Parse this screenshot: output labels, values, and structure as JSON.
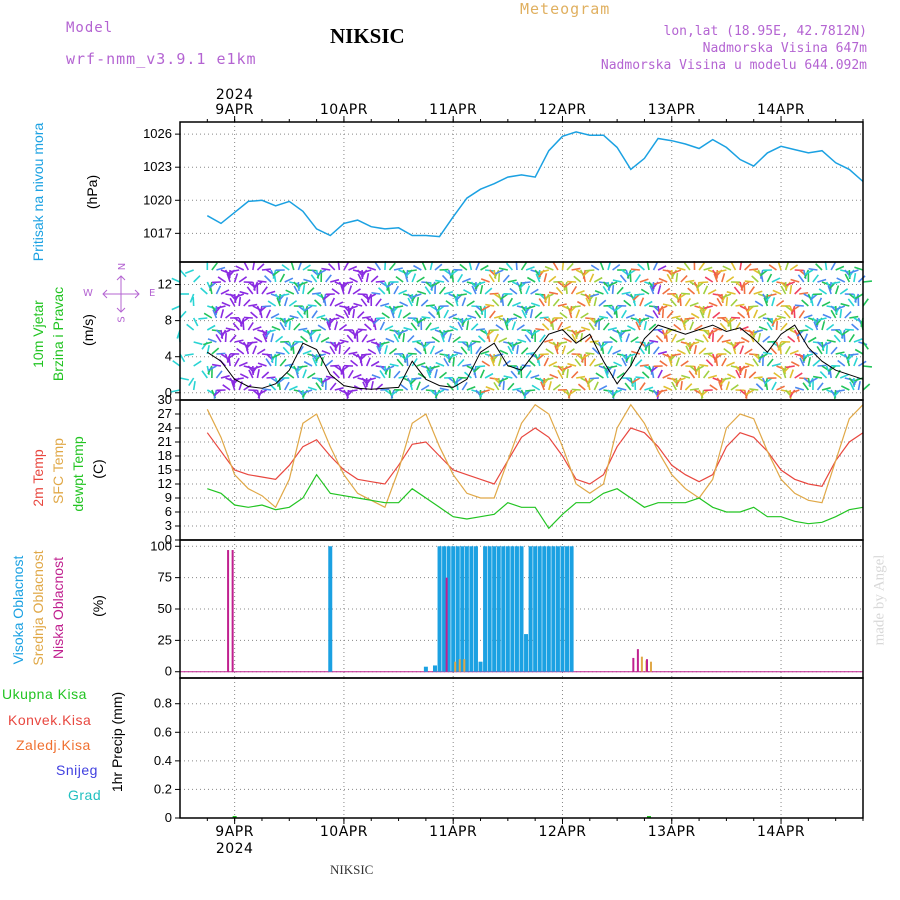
{
  "header": {
    "model_label": "Model",
    "model_name": "wrf-nmm_v3.9.1  e1km",
    "station": "NIKSIC",
    "meteogram": "Meteogram",
    "coords": "lon,lat (18.95E, 42.7812N)",
    "altitude": "Nadmorska Visina 647m",
    "model_altitude": "Nadmorska Visina u modelu 644.092m"
  },
  "year_label": "2024",
  "date_labels": [
    "9APR",
    "10APR",
    "11APR",
    "12APR",
    "13APR",
    "14APR"
  ],
  "footer": {
    "station": "NIKSIC",
    "credit": "made by Angel"
  },
  "panel_labels": {
    "pressure": [
      "Pritisak na nivou mora",
      "(hPa)"
    ],
    "wind": [
      "10m Vjetar",
      "Brzina i Pravac",
      "(m/s)"
    ],
    "wind_rose": {
      "n": "N",
      "s": "S",
      "e": "E",
      "w": "W"
    },
    "temp": [
      "2m Temp",
      "SFC Temp",
      "dewpt Temp",
      "(C)"
    ],
    "cloud": [
      "Visoka Oblacnost",
      "Srednja Oblacnost",
      "Niska Oblacnost",
      "(%)"
    ],
    "precip": [
      "Ukupna Kisa",
      "Konvek.Kisa",
      "Zaledj.Kisa",
      "Snijeg",
      "Grad",
      "1hr Precip (mm)"
    ]
  },
  "colors": {
    "pressure": "#1ba1e2",
    "temp2m": "#e8473f",
    "sfc": "#e0a847",
    "dewpt": "#22c422",
    "cloud_high": "#1ba1e2",
    "cloud_mid": "#e0a847",
    "cloud_low": "#c0208f",
    "precip_total": "#22c422",
    "header_purple": "#b464d2",
    "meteogram_gold": "#e0b060"
  },
  "chart_data": [
    {
      "type": "line",
      "name": "pressure",
      "ylabel": "(hPa)",
      "yticks": [
        "1017",
        "1020",
        "1023",
        "1026"
      ],
      "ylim": [
        1014.4,
        1027.1
      ],
      "x": [
        0,
        3,
        6,
        9,
        12,
        15,
        18,
        21,
        24,
        27,
        30,
        33,
        36,
        39,
        42,
        45,
        48,
        51,
        54,
        57,
        60,
        63,
        66,
        69,
        72,
        75,
        78,
        81,
        84,
        87,
        90,
        93,
        96,
        99,
        102,
        105,
        108,
        111,
        114,
        117,
        120,
        123,
        126,
        129,
        132,
        135,
        138,
        141,
        144
      ],
      "values": [
        1018.6,
        1017.9,
        1018.9,
        1019.9,
        1020.0,
        1019.5,
        1019.9,
        1019.0,
        1017.4,
        1016.8,
        1017.9,
        1018.2,
        1017.6,
        1017.4,
        1017.5,
        1016.8,
        1016.8,
        1016.7,
        1018.5,
        1020.2,
        1021.0,
        1021.5,
        1022.1,
        1022.3,
        1022.1,
        1024.5,
        1025.8,
        1026.2,
        1025.9,
        1025.9,
        1024.8,
        1022.8,
        1023.8,
        1025.6,
        1025.4,
        1025.1,
        1024.7,
        1025.5,
        1024.8,
        1023.7,
        1023.1,
        1024.3,
        1024.9,
        1024.6,
        1024.3,
        1024.5,
        1023.4,
        1022.8,
        1021.7
      ]
    },
    {
      "type": "line",
      "name": "wind_speed",
      "ylabel": "(m/s)",
      "yticks": [
        "0",
        "4",
        "8",
        "12"
      ],
      "ylim": [
        -0.8,
        14.5
      ],
      "x": [
        0,
        3,
        6,
        9,
        12,
        15,
        18,
        21,
        24,
        27,
        30,
        33,
        36,
        39,
        42,
        45,
        48,
        51,
        54,
        57,
        60,
        63,
        66,
        69,
        72,
        75,
        78,
        81,
        84,
        87,
        90,
        93,
        96,
        99,
        102,
        105,
        108,
        111,
        114,
        117,
        120,
        123,
        126,
        129,
        132,
        135,
        138,
        141,
        144
      ],
      "values": [
        4.5,
        3.5,
        1.5,
        0.7,
        0.5,
        1.0,
        2.5,
        5.5,
        4.8,
        2.0,
        0.8,
        0.5,
        0.4,
        0.5,
        0.6,
        3.5,
        1.5,
        0.8,
        0.6,
        1.5,
        4.5,
        5.5,
        3.0,
        2.5,
        4.5,
        6.5,
        7.0,
        5.5,
        6.5,
        3.5,
        1.0,
        3.0,
        6.0,
        7.5,
        7.0,
        6.5,
        7.0,
        7.5,
        6.8,
        7.2,
        6.0,
        4.5,
        6.5,
        7.5,
        5.0,
        3.5,
        2.5,
        2.0,
        1.5
      ]
    },
    {
      "type": "line",
      "name": "temperature",
      "ylabel": "(C)",
      "yticks": [
        "0",
        "3",
        "6",
        "9",
        "12",
        "15",
        "18",
        "21",
        "24",
        "27",
        "30"
      ],
      "ylim": [
        0,
        30
      ],
      "x": [
        0,
        3,
        6,
        9,
        12,
        15,
        18,
        21,
        24,
        27,
        30,
        33,
        36,
        39,
        42,
        45,
        48,
        51,
        54,
        57,
        60,
        63,
        66,
        69,
        72,
        75,
        78,
        81,
        84,
        87,
        90,
        93,
        96,
        99,
        102,
        105,
        108,
        111,
        114,
        117,
        120,
        123,
        126,
        129,
        132,
        135,
        138,
        141,
        144
      ],
      "series": [
        {
          "name": "2m Temp",
          "values": [
            23,
            19,
            15,
            14,
            13.5,
            13,
            16,
            20,
            21.5,
            18,
            15,
            13,
            12.5,
            12,
            16,
            20.5,
            21,
            18,
            15,
            14,
            13,
            12,
            17,
            22,
            24,
            22,
            18,
            13,
            12,
            14,
            20,
            24,
            23,
            20,
            16,
            14,
            12.5,
            14,
            20,
            23,
            22,
            19,
            15,
            13,
            12,
            11.5,
            17,
            21,
            23
          ]
        },
        {
          "name": "SFC Temp",
          "values": [
            28,
            22,
            14,
            11,
            9.5,
            7,
            13,
            25,
            27,
            20,
            14,
            10,
            8.5,
            7,
            15,
            25,
            27,
            20,
            14,
            10,
            9,
            9,
            17,
            25,
            29,
            27,
            20,
            12,
            10,
            12,
            24,
            29,
            25,
            19,
            14,
            11,
            9,
            13,
            24,
            27,
            26,
            19,
            13,
            10,
            8.5,
            8,
            17,
            26,
            29
          ]
        },
        {
          "name": "dewpt Temp",
          "values": [
            11,
            10,
            7.5,
            7,
            7.5,
            6.5,
            7,
            9,
            14,
            10,
            9.5,
            9,
            8.5,
            8,
            8,
            11,
            9,
            7,
            5,
            4.5,
            5,
            5.5,
            8,
            7,
            7,
            2.5,
            5.5,
            8,
            8,
            10,
            11,
            9,
            7,
            8,
            8,
            8,
            9,
            7,
            6,
            6,
            7,
            5,
            5,
            4,
            3.5,
            3.8,
            5,
            6.5,
            7
          ]
        }
      ]
    },
    {
      "type": "bar",
      "name": "cloud_cover",
      "ylabel": "(%)",
      "yticks": [
        "0",
        "25",
        "50",
        "75",
        "100"
      ],
      "ylim": [
        -5,
        105
      ],
      "series": [
        {
          "name": "Visoka Oblacnost",
          "x": [
            27,
            48,
            50,
            51,
            52,
            53,
            54,
            55,
            56,
            57,
            58,
            59,
            60,
            61,
            62,
            63,
            64,
            65,
            66,
            67,
            68,
            69,
            70,
            71,
            72,
            73,
            74,
            75,
            76,
            77,
            78,
            79,
            80
          ],
          "values": [
            100,
            4,
            5,
            100,
            100,
            100,
            100,
            100,
            100,
            100,
            100,
            100,
            8,
            100,
            100,
            100,
            100,
            100,
            100,
            100,
            100,
            100,
            30,
            100,
            100,
            100,
            100,
            100,
            100,
            100,
            100,
            100,
            100
          ]
        },
        {
          "name": "Srednja Oblacnost",
          "x": [
            54,
            55,
            56,
            95,
            96,
            97
          ],
          "values": [
            8,
            10,
            10,
            12,
            9,
            8
          ]
        },
        {
          "name": "Niska Oblacnost",
          "x": [
            5,
            6,
            53,
            94,
            95,
            97
          ],
          "values": [
            97,
            97,
            75,
            11,
            18,
            10
          ]
        }
      ]
    },
    {
      "type": "bar",
      "name": "precip_1hr",
      "ylabel": "1hr Precip (mm)",
      "yticks": [
        "0",
        "0.2",
        "0.4",
        "0.6",
        "0.8"
      ],
      "ylim": [
        0,
        0.98
      ],
      "series": [
        {
          "name": "Ukupna Kisa",
          "x": [
            6,
            97
          ],
          "values": [
            0.005,
            0.005
          ]
        },
        {
          "name": "Konvek.Kisa",
          "x": [],
          "values": []
        },
        {
          "name": "Zaledj.Kisa",
          "x": [],
          "values": []
        },
        {
          "name": "Snijeg",
          "x": [],
          "values": []
        },
        {
          "name": "Grad",
          "x": [],
          "values": []
        }
      ]
    }
  ]
}
